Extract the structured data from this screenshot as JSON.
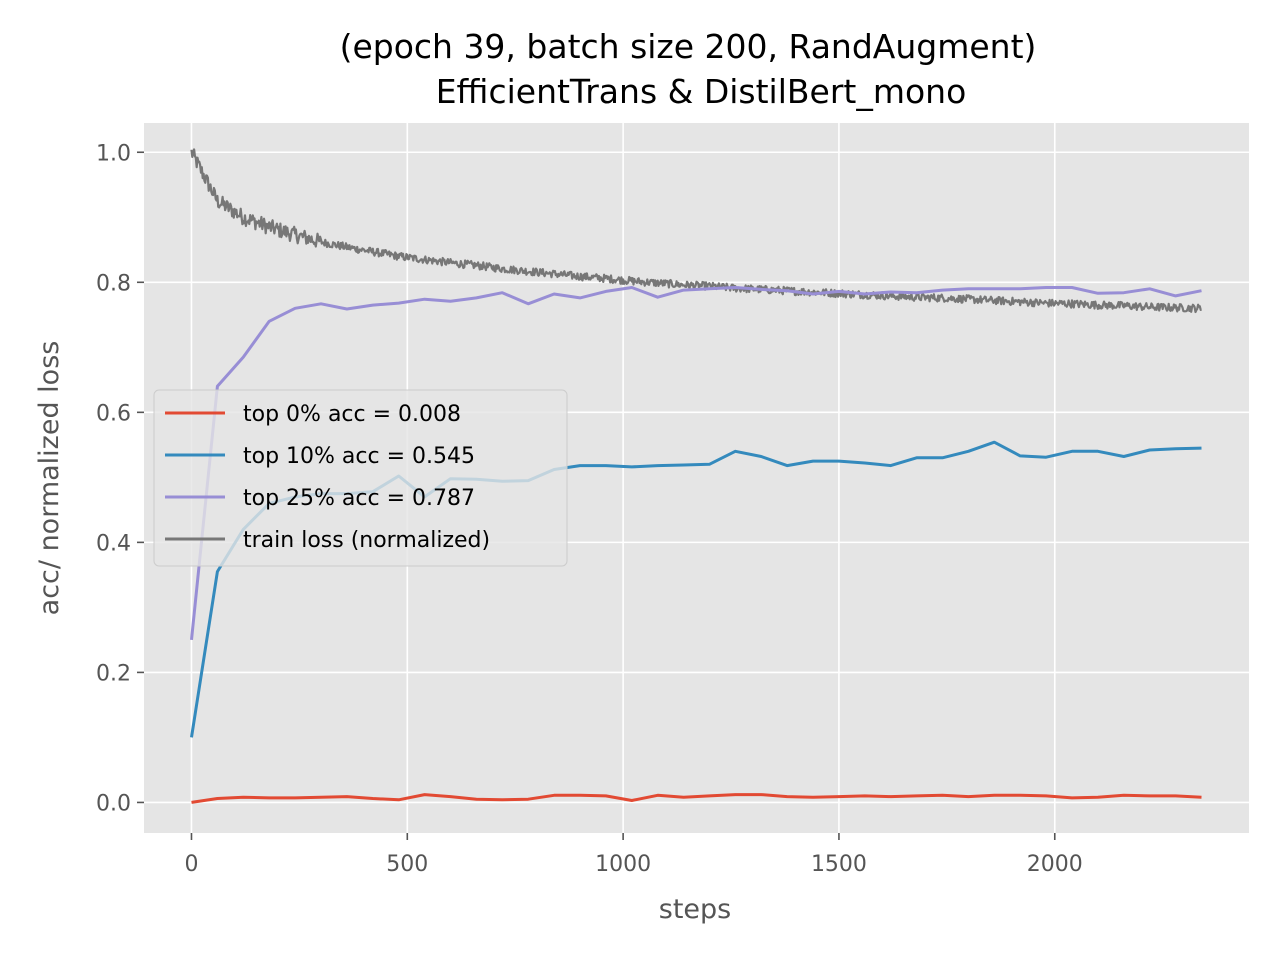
{
  "chart_data": {
    "type": "line",
    "title": [
      "(epoch 39, batch size 200, RandAugment)",
      "EfficientTrans & DistilBert_mono"
    ],
    "xlabel": "steps",
    "ylabel": "acc/ normalized loss",
    "xlim": [
      -110,
      2450
    ],
    "ylim": [
      -0.047,
      1.045
    ],
    "xticks": [
      0,
      500,
      1000,
      1500,
      2000
    ],
    "xtick_labels": [
      "0",
      "500",
      "1000",
      "1500",
      "2000"
    ],
    "yticks": [
      0.0,
      0.2,
      0.4,
      0.6,
      0.8,
      1.0
    ],
    "ytick_labels": [
      "0.0",
      "0.2",
      "0.4",
      "0.6",
      "0.8",
      "1.0"
    ],
    "grid": true,
    "legend_position": "center-left",
    "x": [
      0,
      60,
      120,
      180,
      240,
      300,
      360,
      420,
      480,
      540,
      600,
      660,
      720,
      780,
      840,
      900,
      960,
      1020,
      1080,
      1140,
      1200,
      1260,
      1320,
      1380,
      1440,
      1500,
      1560,
      1620,
      1680,
      1740,
      1800,
      1860,
      1920,
      1980,
      2040,
      2100,
      2160,
      2220,
      2280,
      2340
    ],
    "series": [
      {
        "name": "top 0% acc = 0.008",
        "color": "#E24A33",
        "values": [
          0.0,
          0.006,
          0.008,
          0.007,
          0.007,
          0.008,
          0.009,
          0.006,
          0.004,
          0.012,
          0.009,
          0.005,
          0.004,
          0.005,
          0.011,
          0.011,
          0.01,
          0.003,
          0.011,
          0.008,
          0.01,
          0.012,
          0.012,
          0.009,
          0.008,
          0.009,
          0.01,
          0.009,
          0.01,
          0.011,
          0.009,
          0.011,
          0.011,
          0.01,
          0.007,
          0.008,
          0.011,
          0.01,
          0.01,
          0.008
        ]
      },
      {
        "name": "top 10% acc = 0.545",
        "color": "#348ABD",
        "values": [
          0.1,
          0.355,
          0.42,
          0.46,
          0.47,
          0.475,
          0.475,
          0.478,
          0.502,
          0.47,
          0.498,
          0.497,
          0.494,
          0.495,
          0.512,
          0.518,
          0.518,
          0.516,
          0.518,
          0.519,
          0.52,
          0.54,
          0.532,
          0.518,
          0.525,
          0.525,
          0.522,
          0.518,
          0.53,
          0.53,
          0.54,
          0.554,
          0.533,
          0.531,
          0.54,
          0.54,
          0.532,
          0.542,
          0.544,
          0.545
        ]
      },
      {
        "name": "top 25% acc = 0.787",
        "color": "#988ED5",
        "values": [
          0.25,
          0.64,
          0.685,
          0.74,
          0.76,
          0.767,
          0.759,
          0.765,
          0.768,
          0.774,
          0.771,
          0.776,
          0.784,
          0.767,
          0.782,
          0.776,
          0.786,
          0.792,
          0.777,
          0.788,
          0.79,
          0.792,
          0.789,
          0.787,
          0.782,
          0.786,
          0.782,
          0.785,
          0.784,
          0.788,
          0.79,
          0.79,
          0.79,
          0.792,
          0.792,
          0.783,
          0.784,
          0.79,
          0.779,
          0.787
        ]
      },
      {
        "name": "train loss (normalized)",
        "color": "#777777",
        "noisy": true,
        "values": [
          1.0,
          0.925,
          0.9,
          0.885,
          0.873,
          0.862,
          0.854,
          0.847,
          0.84,
          0.835,
          0.83,
          0.826,
          0.821,
          0.817,
          0.813,
          0.809,
          0.806,
          0.802,
          0.799,
          0.796,
          0.794,
          0.791,
          0.789,
          0.787,
          0.785,
          0.783,
          0.781,
          0.779,
          0.777,
          0.776,
          0.774,
          0.772,
          0.77,
          0.768,
          0.767,
          0.765,
          0.764,
          0.762,
          0.761,
          0.76
        ]
      }
    ]
  }
}
